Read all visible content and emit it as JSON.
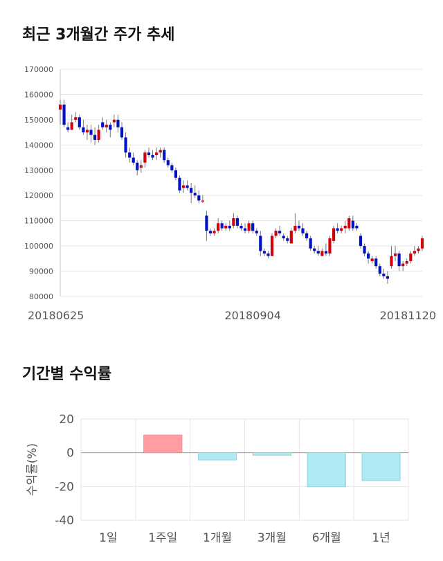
{
  "titles": {
    "price_trend": "최근 3개월간 주가 추세",
    "period_returns": "기간별 수익률"
  },
  "colors": {
    "up": "#d0000c",
    "down": "#0012c8",
    "grid": "#e6e6e6",
    "bar_positive": "#ff9da2",
    "bar_negative": "#aee9f4",
    "bar_negative_stroke": "#8fd6e4"
  },
  "chart_data": [
    {
      "type": "candlestick",
      "title": "최근 3개월간 주가 추세",
      "ylim": [
        80000,
        170000
      ],
      "y_ticks": [
        80000,
        90000,
        100000,
        110000,
        120000,
        130000,
        140000,
        150000,
        160000,
        170000
      ],
      "x_tick_labels": [
        {
          "index": 0,
          "label": "20180625"
        },
        {
          "index": 50,
          "label": "20180904"
        },
        {
          "index": 100,
          "label": "20181120"
        }
      ],
      "candles": [
        [
          154000,
          158000,
          148000,
          156000
        ],
        [
          156000,
          158000,
          147000,
          148000
        ],
        [
          147000,
          149000,
          145000,
          146000
        ],
        [
          146000,
          152000,
          146000,
          149000
        ],
        [
          150000,
          153000,
          149000,
          151000
        ],
        [
          151000,
          152000,
          146000,
          147000
        ],
        [
          147000,
          150000,
          144000,
          145000
        ],
        [
          145000,
          148000,
          142000,
          146000
        ],
        [
          146000,
          148000,
          141000,
          144000
        ],
        [
          144000,
          147000,
          140000,
          142000
        ],
        [
          142000,
          148000,
          141000,
          146000
        ],
        [
          149000,
          151000,
          146000,
          147000
        ],
        [
          147000,
          150000,
          145000,
          148000
        ],
        [
          148000,
          149000,
          143000,
          146000
        ],
        [
          149000,
          152000,
          147000,
          150000
        ],
        [
          150000,
          152000,
          145000,
          147000
        ],
        [
          147000,
          149000,
          142000,
          143000
        ],
        [
          143000,
          145000,
          135000,
          137000
        ],
        [
          137000,
          139000,
          133000,
          135000
        ],
        [
          135000,
          137000,
          132000,
          133000
        ],
        [
          133000,
          134000,
          128000,
          130000
        ],
        [
          131000,
          134000,
          129000,
          132000
        ],
        [
          133000,
          138000,
          131000,
          137000
        ],
        [
          137000,
          139000,
          135000,
          136000
        ],
        [
          136000,
          138000,
          134000,
          135000
        ],
        [
          136000,
          139000,
          134000,
          137000
        ],
        [
          137000,
          139000,
          135000,
          138000
        ],
        [
          138000,
          139000,
          133000,
          134000
        ],
        [
          134000,
          135000,
          131000,
          132000
        ],
        [
          132000,
          133000,
          129000,
          130000
        ],
        [
          130000,
          131000,
          126000,
          127000
        ],
        [
          127000,
          128000,
          121000,
          122000
        ],
        [
          123000,
          126000,
          121000,
          124000
        ],
        [
          124000,
          126000,
          122000,
          123000
        ],
        [
          123000,
          125000,
          117000,
          121000
        ],
        [
          121000,
          124000,
          119000,
          120000
        ],
        [
          120000,
          122000,
          117000,
          118000
        ],
        [
          118000,
          120000,
          117000,
          118000
        ],
        [
          112000,
          114000,
          102000,
          106000
        ],
        [
          106000,
          107000,
          104000,
          105000
        ],
        [
          105000,
          107000,
          104000,
          106000
        ],
        [
          106000,
          111000,
          105000,
          109000
        ],
        [
          109000,
          110000,
          106000,
          107000
        ],
        [
          107000,
          109000,
          106000,
          108000
        ],
        [
          108000,
          110000,
          106000,
          107000
        ],
        [
          108000,
          113000,
          107000,
          111000
        ],
        [
          111000,
          112000,
          107000,
          108000
        ],
        [
          108000,
          109000,
          106000,
          107000
        ],
        [
          107000,
          109000,
          105000,
          106000
        ],
        [
          106000,
          110000,
          105000,
          109000
        ],
        [
          109000,
          110000,
          105000,
          106000
        ],
        [
          106000,
          107000,
          104000,
          105000
        ],
        [
          104000,
          106000,
          96000,
          98000
        ],
        [
          98000,
          99000,
          96000,
          97000
        ],
        [
          97000,
          98000,
          95000,
          96000
        ],
        [
          96000,
          105000,
          96000,
          104000
        ],
        [
          104000,
          107000,
          103000,
          106000
        ],
        [
          106000,
          108000,
          104000,
          105000
        ],
        [
          104000,
          105000,
          102000,
          103000
        ],
        [
          103000,
          104000,
          101000,
          102000
        ],
        [
          101000,
          107000,
          101000,
          106000
        ],
        [
          106000,
          113000,
          105000,
          108000
        ],
        [
          108000,
          110000,
          106000,
          107000
        ],
        [
          107000,
          109000,
          104000,
          105000
        ],
        [
          105000,
          106000,
          102000,
          103000
        ],
        [
          103000,
          104000,
          98000,
          99000
        ],
        [
          99000,
          100000,
          97000,
          98000
        ],
        [
          98000,
          100000,
          96000,
          97000
        ],
        [
          96000,
          99000,
          96000,
          98000
        ],
        [
          98000,
          101000,
          96000,
          97000
        ],
        [
          97000,
          104000,
          96000,
          103000
        ],
        [
          102000,
          108000,
          101000,
          107000
        ],
        [
          107000,
          109000,
          105000,
          106000
        ],
        [
          106000,
          108000,
          105000,
          107000
        ],
        [
          107000,
          110000,
          105000,
          108000
        ],
        [
          107000,
          112000,
          106000,
          111000
        ],
        [
          110000,
          112000,
          106000,
          107000
        ],
        [
          108000,
          109000,
          106000,
          107000
        ],
        [
          104000,
          105000,
          99000,
          100000
        ],
        [
          100000,
          101000,
          96000,
          97000
        ],
        [
          97000,
          98000,
          93000,
          95000
        ],
        [
          94000,
          96000,
          93000,
          95000
        ],
        [
          95000,
          96000,
          91000,
          92000
        ],
        [
          92000,
          93000,
          88000,
          89000
        ],
        [
          89000,
          91000,
          87000,
          88000
        ],
        [
          88000,
          90000,
          85000,
          87000
        ],
        [
          92000,
          100000,
          91000,
          96000
        ],
        [
          96000,
          100000,
          94000,
          97000
        ],
        [
          97000,
          98000,
          90000,
          92000
        ],
        [
          92000,
          94000,
          90000,
          93000
        ],
        [
          93000,
          95000,
          92000,
          94000
        ],
        [
          94000,
          98000,
          93000,
          97000
        ],
        [
          97000,
          100000,
          96000,
          98000
        ],
        [
          98000,
          100000,
          97000,
          99000
        ],
        [
          99000,
          104000,
          98000,
          103000
        ]
      ]
    },
    {
      "type": "bar",
      "title": "기간별 수익률",
      "ylabel": "수익률(%)",
      "ylim": [
        -40,
        20
      ],
      "y_ticks": [
        20,
        0,
        -20,
        -40
      ],
      "categories": [
        "1일",
        "1주일",
        "1개월",
        "3개월",
        "6개월",
        "1년"
      ],
      "values": [
        0,
        10.5,
        -4.3,
        -1.5,
        -20.2,
        -16.5
      ]
    }
  ]
}
